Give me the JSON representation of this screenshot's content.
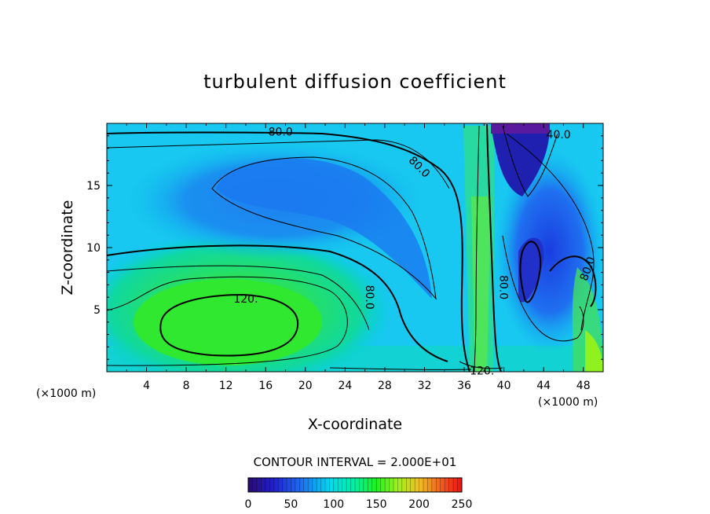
{
  "chart_data": {
    "type": "heatmap",
    "title": "turbulent diffusion coefficient",
    "xlabel": "X-coordinate",
    "ylabel": "Z-coordinate",
    "x_unit_left": "(×1000 m)",
    "x_unit_right": "(×1000 m)",
    "xlim": [
      0,
      50
    ],
    "ylim": [
      0,
      20
    ],
    "x_ticks": [
      4,
      8,
      12,
      16,
      20,
      24,
      28,
      32,
      36,
      40,
      44,
      48
    ],
    "y_ticks": [
      5,
      10,
      15
    ],
    "contour_interval_text": "CONTOUR INTERVAL = 2.000E+01",
    "contour_interval": 20,
    "colorbar": {
      "min": 0,
      "max": 250,
      "ticks": [
        0,
        50,
        100,
        150,
        200,
        250
      ],
      "colormap": [
        "#2a0a70",
        "#2020d0",
        "#1f6ff0",
        "#00d8f0",
        "#00f0a0",
        "#20f020",
        "#a0f020",
        "#f0c020",
        "#f06020",
        "#f01010"
      ]
    },
    "contour_labels": [
      {
        "text": "80.0",
        "x": 17.5,
        "z": 19.35
      },
      {
        "text": "80.0",
        "x": 31.5,
        "z": 16.5,
        "rotate": 45
      },
      {
        "text": "80.0",
        "x": 26.5,
        "z": 6.0,
        "rotate": 90
      },
      {
        "text": "120.",
        "x": 14.0,
        "z": 5.9
      },
      {
        "text": "80.0",
        "x": 40.0,
        "z": 6.8,
        "rotate": 90
      },
      {
        "text": "40.0",
        "x": 45.5,
        "z": 19.1
      },
      {
        "text": "80.0",
        "x": 48.4,
        "z": 8.3,
        "rotate": -70
      },
      {
        "text": "120.",
        "x": 37.8,
        "z": 0.1
      }
    ]
  }
}
